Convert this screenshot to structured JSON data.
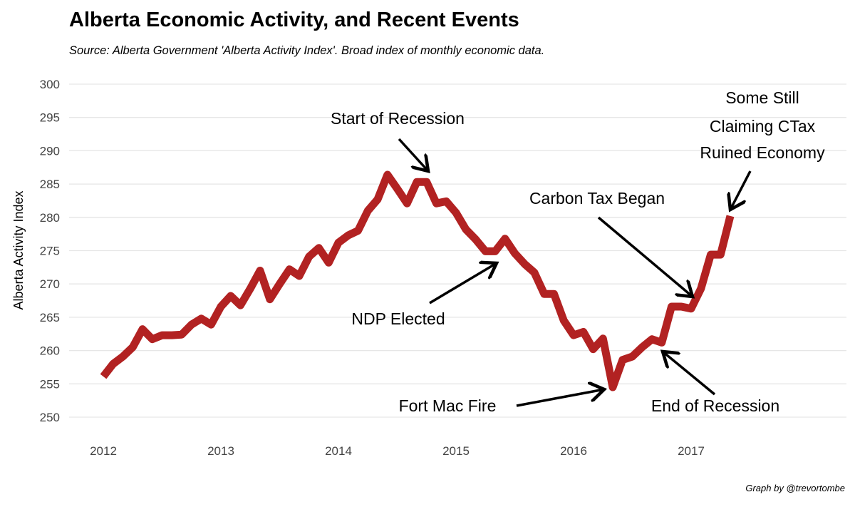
{
  "chart_data": {
    "type": "line",
    "title": "Alberta Economic Activity, and Recent Events",
    "subtitle": "Source: Alberta Government 'Alberta Activity Index'. Broad index of monthly economic data.",
    "xlabel": "",
    "ylabel": "Alberta Activity Index",
    "caption": "Graph by @trevortombe",
    "ylim": [
      250,
      300
    ],
    "yticks": [
      250,
      255,
      260,
      265,
      270,
      275,
      280,
      285,
      290,
      295,
      300
    ],
    "xticks": [
      "2012",
      "2013",
      "2014",
      "2015",
      "2016",
      "2017"
    ],
    "grid": true,
    "line_color": "#b22222",
    "x_start": "2012-01",
    "x_frequency": "monthly",
    "values": [
      256.1,
      258,
      259.1,
      260.5,
      263.2,
      261.7,
      262.3,
      262.3,
      262.4,
      263.9,
      264.8,
      263.9,
      266.6,
      268.2,
      266.8,
      269.3,
      272,
      267.7,
      270,
      272.2,
      271.2,
      274.1,
      275.4,
      273.2,
      276.2,
      277.3,
      278,
      281,
      282.7,
      286.4,
      284.3,
      282.1,
      285.3,
      285.3,
      282.1,
      282.4,
      280.7,
      278.2,
      276.7,
      274.9,
      274.9,
      276.8,
      274.6,
      273,
      271.7,
      268.5,
      268.5,
      264.5,
      262.3,
      262.8,
      260.2,
      261.8,
      254.5,
      258.6,
      259.1,
      260.5,
      261.7,
      261.2,
      266.6,
      266.6,
      266.3,
      269.3,
      274.4,
      274.4,
      280.2
    ],
    "annotations": [
      {
        "lines": [
          "Start of Recession"
        ],
        "points_to": "2014-09"
      },
      {
        "lines": [
          "NDP Elected"
        ],
        "points_to": "2015-05"
      },
      {
        "lines": [
          "Carbon Tax Began"
        ],
        "points_to": "2017-01"
      },
      {
        "lines": [
          "Some Still",
          "Claiming CTax",
          "Ruined Economy"
        ],
        "points_to": "2017-05"
      },
      {
        "lines": [
          "Fort Mac Fire"
        ],
        "points_to": "2016-05"
      },
      {
        "lines": [
          "End of Recession"
        ],
        "points_to": "2016-10"
      }
    ]
  }
}
